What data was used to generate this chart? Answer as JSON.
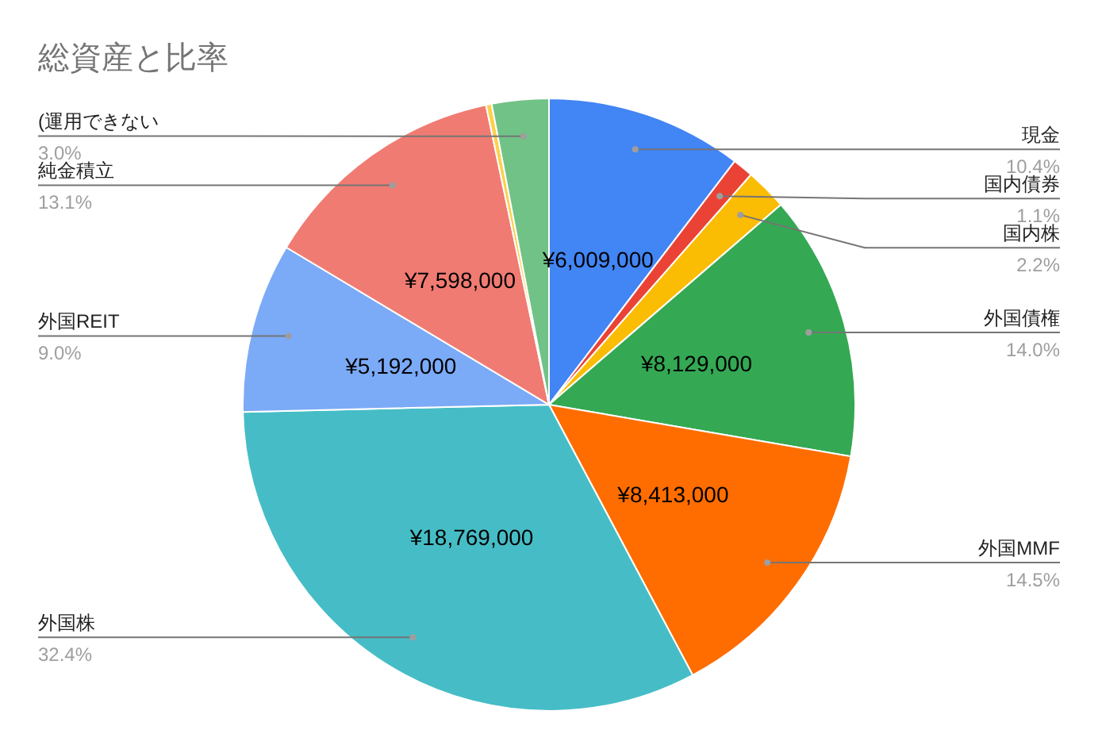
{
  "chart_data": {
    "type": "pie",
    "title": "総資産と比率",
    "categories": [
      "現金",
      "国内債券",
      "国内株",
      "外国債権",
      "外国MMF",
      "外国株",
      "外国REIT",
      "純金積立",
      null,
      "(運用できない"
    ],
    "values": [
      6009000,
      637000,
      1275000,
      8129000,
      8413000,
      18769000,
      5192000,
      7598000,
      174000,
      1738000
    ],
    "annotations": [
      "10.4%",
      "1.1%",
      "2.2%",
      "14.0%",
      "14.5%",
      "32.4%",
      "9.0%",
      "13.1%",
      "3.0%"
    ],
    "colors": [
      "#4285f4",
      "#ea4335",
      "#fbbc04",
      "#34a853",
      "#ff6d01",
      "#46bdc6",
      "#7baaf7",
      "#f07b72",
      "#fcd04f",
      "#71c287"
    ],
    "value_labels": [
      "¥6,009,000",
      null,
      null,
      "¥8,129,000",
      "¥8,413,000",
      "¥18,769,000",
      "¥5,192,000",
      "¥7,598,000",
      null,
      null
    ],
    "legend": false
  }
}
